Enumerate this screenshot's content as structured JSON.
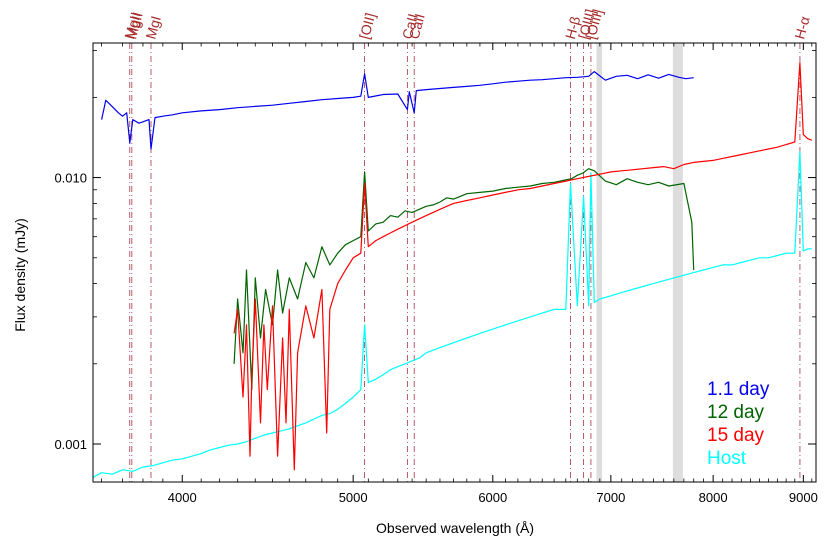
{
  "chart_data": {
    "type": "line",
    "title": "",
    "xlabel": "Observed wavelength (Å)",
    "ylabel": "Flux density (mJy)",
    "x_scale": "log",
    "y_scale": "log",
    "xlim": [
      3560,
      9150
    ],
    "ylim": [
      0.00072,
      0.032
    ],
    "x_ticks": [
      {
        "value": 4000,
        "label": "4000"
      },
      {
        "value": 5000,
        "label": "5000"
      },
      {
        "value": 6000,
        "label": "6000"
      },
      {
        "value": 7000,
        "label": "7000"
      },
      {
        "value": 8000,
        "label": "8000"
      },
      {
        "value": 9000,
        "label": "9000"
      }
    ],
    "y_ticks": [
      {
        "value": 0.001,
        "label": "0.001"
      },
      {
        "value": 0.01,
        "label": "0.010"
      }
    ],
    "grid": false,
    "legend_position": "bottom-right",
    "telluric_bands": [
      {
        "from": 6870,
        "to": 6920
      },
      {
        "from": 7590,
        "to": 7690
      }
    ],
    "line_markers": [
      {
        "label": "MgII",
        "wavelength": 3735
      },
      {
        "label": "MgII",
        "wavelength": 3745
      },
      {
        "label": "MgI",
        "wavelength": 3840
      },
      {
        "label": "[OII]",
        "wavelength": 5075
      },
      {
        "label": "CaII",
        "wavelength": 5367
      },
      {
        "label": "CaII",
        "wavelength": 5415
      },
      {
        "label": "H-β",
        "wavelength": 6641
      },
      {
        "label": "[OIII]",
        "wavelength": 6755
      },
      {
        "label": "[OIII]",
        "wavelength": 6820
      },
      {
        "label": "H-α",
        "wavelength": 8960
      }
    ],
    "series": [
      {
        "name": "1.1 day",
        "color": "#0000ee",
        "x": [
          3600,
          3620,
          3650,
          3680,
          3700,
          3720,
          3735,
          3750,
          3780,
          3800,
          3830,
          3840,
          3860,
          3900,
          3950,
          4000,
          4100,
          4200,
          4300,
          4400,
          4500,
          4600,
          4700,
          4800,
          4900,
          5000,
          5050,
          5075,
          5100,
          5200,
          5300,
          5367,
          5380,
          5415,
          5430,
          5500,
          5600,
          5700,
          5800,
          5900,
          6000,
          6100,
          6200,
          6300,
          6400,
          6500,
          6600,
          6700,
          6800,
          6850,
          6950,
          7050,
          7150,
          7250,
          7350,
          7450,
          7550,
          7650,
          7720,
          7800
        ],
        "y": [
          0.0165,
          0.0195,
          0.0185,
          0.0175,
          0.017,
          0.0175,
          0.0135,
          0.0165,
          0.016,
          0.0162,
          0.0165,
          0.0128,
          0.0168,
          0.017,
          0.0172,
          0.0175,
          0.0178,
          0.018,
          0.0183,
          0.0185,
          0.0187,
          0.019,
          0.0193,
          0.0196,
          0.0198,
          0.02,
          0.0202,
          0.0245,
          0.02,
          0.0205,
          0.0206,
          0.018,
          0.021,
          0.0175,
          0.0212,
          0.0214,
          0.0216,
          0.0218,
          0.022,
          0.0222,
          0.0225,
          0.0228,
          0.023,
          0.0232,
          0.0233,
          0.0235,
          0.0237,
          0.0238,
          0.024,
          0.025,
          0.0232,
          0.024,
          0.0242,
          0.0235,
          0.0243,
          0.0236,
          0.0244,
          0.0238,
          0.0235,
          0.0237
        ]
      },
      {
        "name": "12 day",
        "color": "#006400",
        "x": [
          4280,
          4300,
          4330,
          4350,
          4380,
          4400,
          4430,
          4460,
          4500,
          4530,
          4560,
          4600,
          4650,
          4700,
          4750,
          4800,
          4850,
          4900,
          4950,
          5000,
          5050,
          5075,
          5100,
          5150,
          5200,
          5250,
          5300,
          5350,
          5400,
          5450,
          5500,
          5550,
          5600,
          5650,
          5700,
          5750,
          5800,
          5900,
          6000,
          6100,
          6200,
          6300,
          6400,
          6500,
          6600,
          6650,
          6700,
          6750,
          6800,
          6850,
          6950,
          7050,
          7150,
          7250,
          7350,
          7450,
          7550,
          7700,
          7780,
          7800
        ],
        "y": [
          0.002,
          0.0035,
          0.0022,
          0.0045,
          0.0016,
          0.0042,
          0.0025,
          0.0038,
          0.0028,
          0.0045,
          0.0031,
          0.0042,
          0.0035,
          0.0048,
          0.0042,
          0.0055,
          0.0047,
          0.0052,
          0.0056,
          0.0058,
          0.006,
          0.0105,
          0.0063,
          0.0067,
          0.0068,
          0.0072,
          0.0071,
          0.0075,
          0.0074,
          0.0076,
          0.0078,
          0.0079,
          0.0081,
          0.0084,
          0.0083,
          0.0085,
          0.0087,
          0.0088,
          0.0089,
          0.0091,
          0.0092,
          0.0093,
          0.0095,
          0.0096,
          0.0098,
          0.0099,
          0.0102,
          0.0104,
          0.0108,
          0.0106,
          0.0097,
          0.0094,
          0.0099,
          0.0096,
          0.0094,
          0.0096,
          0.0093,
          0.0095,
          0.0068,
          0.0045
        ]
      },
      {
        "name": "15 day",
        "color": "#ff0000",
        "x": [
          4280,
          4300,
          4330,
          4350,
          4370,
          4380,
          4400,
          4430,
          4450,
          4470,
          4500,
          4530,
          4560,
          4580,
          4600,
          4630,
          4650,
          4700,
          4750,
          4800,
          4830,
          4850,
          4900,
          4950,
          5000,
          5050,
          5075,
          5100,
          5150,
          5200,
          5250,
          5300,
          5350,
          5400,
          5450,
          5500,
          5550,
          5600,
          5650,
          5700,
          5800,
          5900,
          6000,
          6100,
          6200,
          6300,
          6400,
          6500,
          6600,
          6700,
          6800,
          6900,
          7000,
          7100,
          7200,
          7300,
          7400,
          7500,
          7600,
          7700,
          7800,
          7900,
          8000,
          8100,
          8200,
          8300,
          8400,
          8500,
          8600,
          8700,
          8800,
          8900,
          8960,
          9000,
          9050,
          9100
        ],
        "y": [
          0.0026,
          0.0032,
          0.0015,
          0.0028,
          0.0009,
          0.0018,
          0.0035,
          0.0012,
          0.0028,
          0.0016,
          0.0033,
          0.0009,
          0.0025,
          0.0012,
          0.0032,
          0.0008,
          0.0022,
          0.0033,
          0.0025,
          0.0038,
          0.0011,
          0.0032,
          0.004,
          0.0045,
          0.005,
          0.0052,
          0.0095,
          0.0055,
          0.0058,
          0.006,
          0.0062,
          0.0064,
          0.0066,
          0.0068,
          0.007,
          0.0072,
          0.0074,
          0.0076,
          0.0078,
          0.008,
          0.0082,
          0.0084,
          0.0086,
          0.0088,
          0.009,
          0.0091,
          0.0093,
          0.0095,
          0.0097,
          0.0099,
          0.0101,
          0.0103,
          0.0105,
          0.0106,
          0.0107,
          0.0108,
          0.0109,
          0.011,
          0.0108,
          0.0112,
          0.0114,
          0.0115,
          0.0116,
          0.0118,
          0.012,
          0.0122,
          0.0124,
          0.0126,
          0.0128,
          0.013,
          0.0133,
          0.0136,
          0.027,
          0.0145,
          0.014,
          0.0138
        ]
      },
      {
        "name": "Host",
        "color": "#00ffff",
        "x": [
          3560,
          3600,
          3650,
          3700,
          3750,
          3800,
          3850,
          3900,
          3950,
          4000,
          4050,
          4100,
          4150,
          4200,
          4250,
          4300,
          4350,
          4400,
          4450,
          4500,
          4550,
          4600,
          4650,
          4700,
          4750,
          4800,
          4850,
          4900,
          4950,
          5000,
          5050,
          5075,
          5100,
          5150,
          5200,
          5250,
          5300,
          5350,
          5400,
          5450,
          5500,
          5600,
          5700,
          5800,
          5900,
          6000,
          6100,
          6200,
          6300,
          6400,
          6500,
          6600,
          6641,
          6700,
          6755,
          6800,
          6820,
          6850,
          6900,
          7000,
          7100,
          7200,
          7300,
          7400,
          7500,
          7600,
          7700,
          7800,
          7900,
          8000,
          8100,
          8200,
          8300,
          8400,
          8500,
          8600,
          8700,
          8800,
          8900,
          8960,
          9000,
          9050,
          9100
        ],
        "y": [
          0.00075,
          0.00078,
          0.00077,
          0.0008,
          0.00079,
          0.00082,
          0.00083,
          0.00085,
          0.00087,
          0.00088,
          0.0009,
          0.00092,
          0.00095,
          0.00097,
          0.00099,
          0.001,
          0.00102,
          0.00105,
          0.00108,
          0.0011,
          0.00112,
          0.00114,
          0.00117,
          0.0012,
          0.00124,
          0.00128,
          0.0013,
          0.00135,
          0.00142,
          0.0015,
          0.0016,
          0.0028,
          0.0017,
          0.00175,
          0.00182,
          0.0019,
          0.00195,
          0.002,
          0.00205,
          0.0021,
          0.0022,
          0.0023,
          0.0024,
          0.0025,
          0.0026,
          0.0027,
          0.0028,
          0.0029,
          0.003,
          0.0031,
          0.0032,
          0.0032,
          0.0095,
          0.0033,
          0.0085,
          0.0033,
          0.0104,
          0.0034,
          0.0035,
          0.0036,
          0.0037,
          0.0038,
          0.0039,
          0.004,
          0.0041,
          0.0042,
          0.0043,
          0.0044,
          0.0045,
          0.0046,
          0.0047,
          0.0047,
          0.0048,
          0.0049,
          0.005,
          0.005,
          0.0051,
          0.0052,
          0.0052,
          0.0125,
          0.0053,
          0.0054,
          0.0054
        ]
      }
    ]
  }
}
